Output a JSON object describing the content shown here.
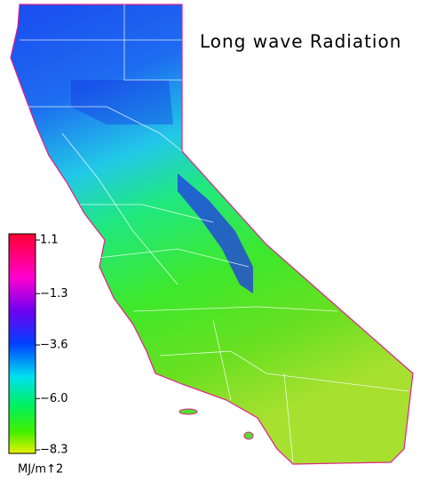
{
  "title": "Long wave Radiation",
  "legend": {
    "unit": "MJ/m↑2",
    "range": [
      -8.3,
      1.1
    ],
    "ticks": [
      {
        "value": 1.1,
        "label": "1.1"
      },
      {
        "value": -1.3,
        "label": "−1.3"
      },
      {
        "value": -3.6,
        "label": "−3.6"
      },
      {
        "value": -6.0,
        "label": "−6.0"
      },
      {
        "value": -8.3,
        "label": "−8.3"
      }
    ]
  }
}
